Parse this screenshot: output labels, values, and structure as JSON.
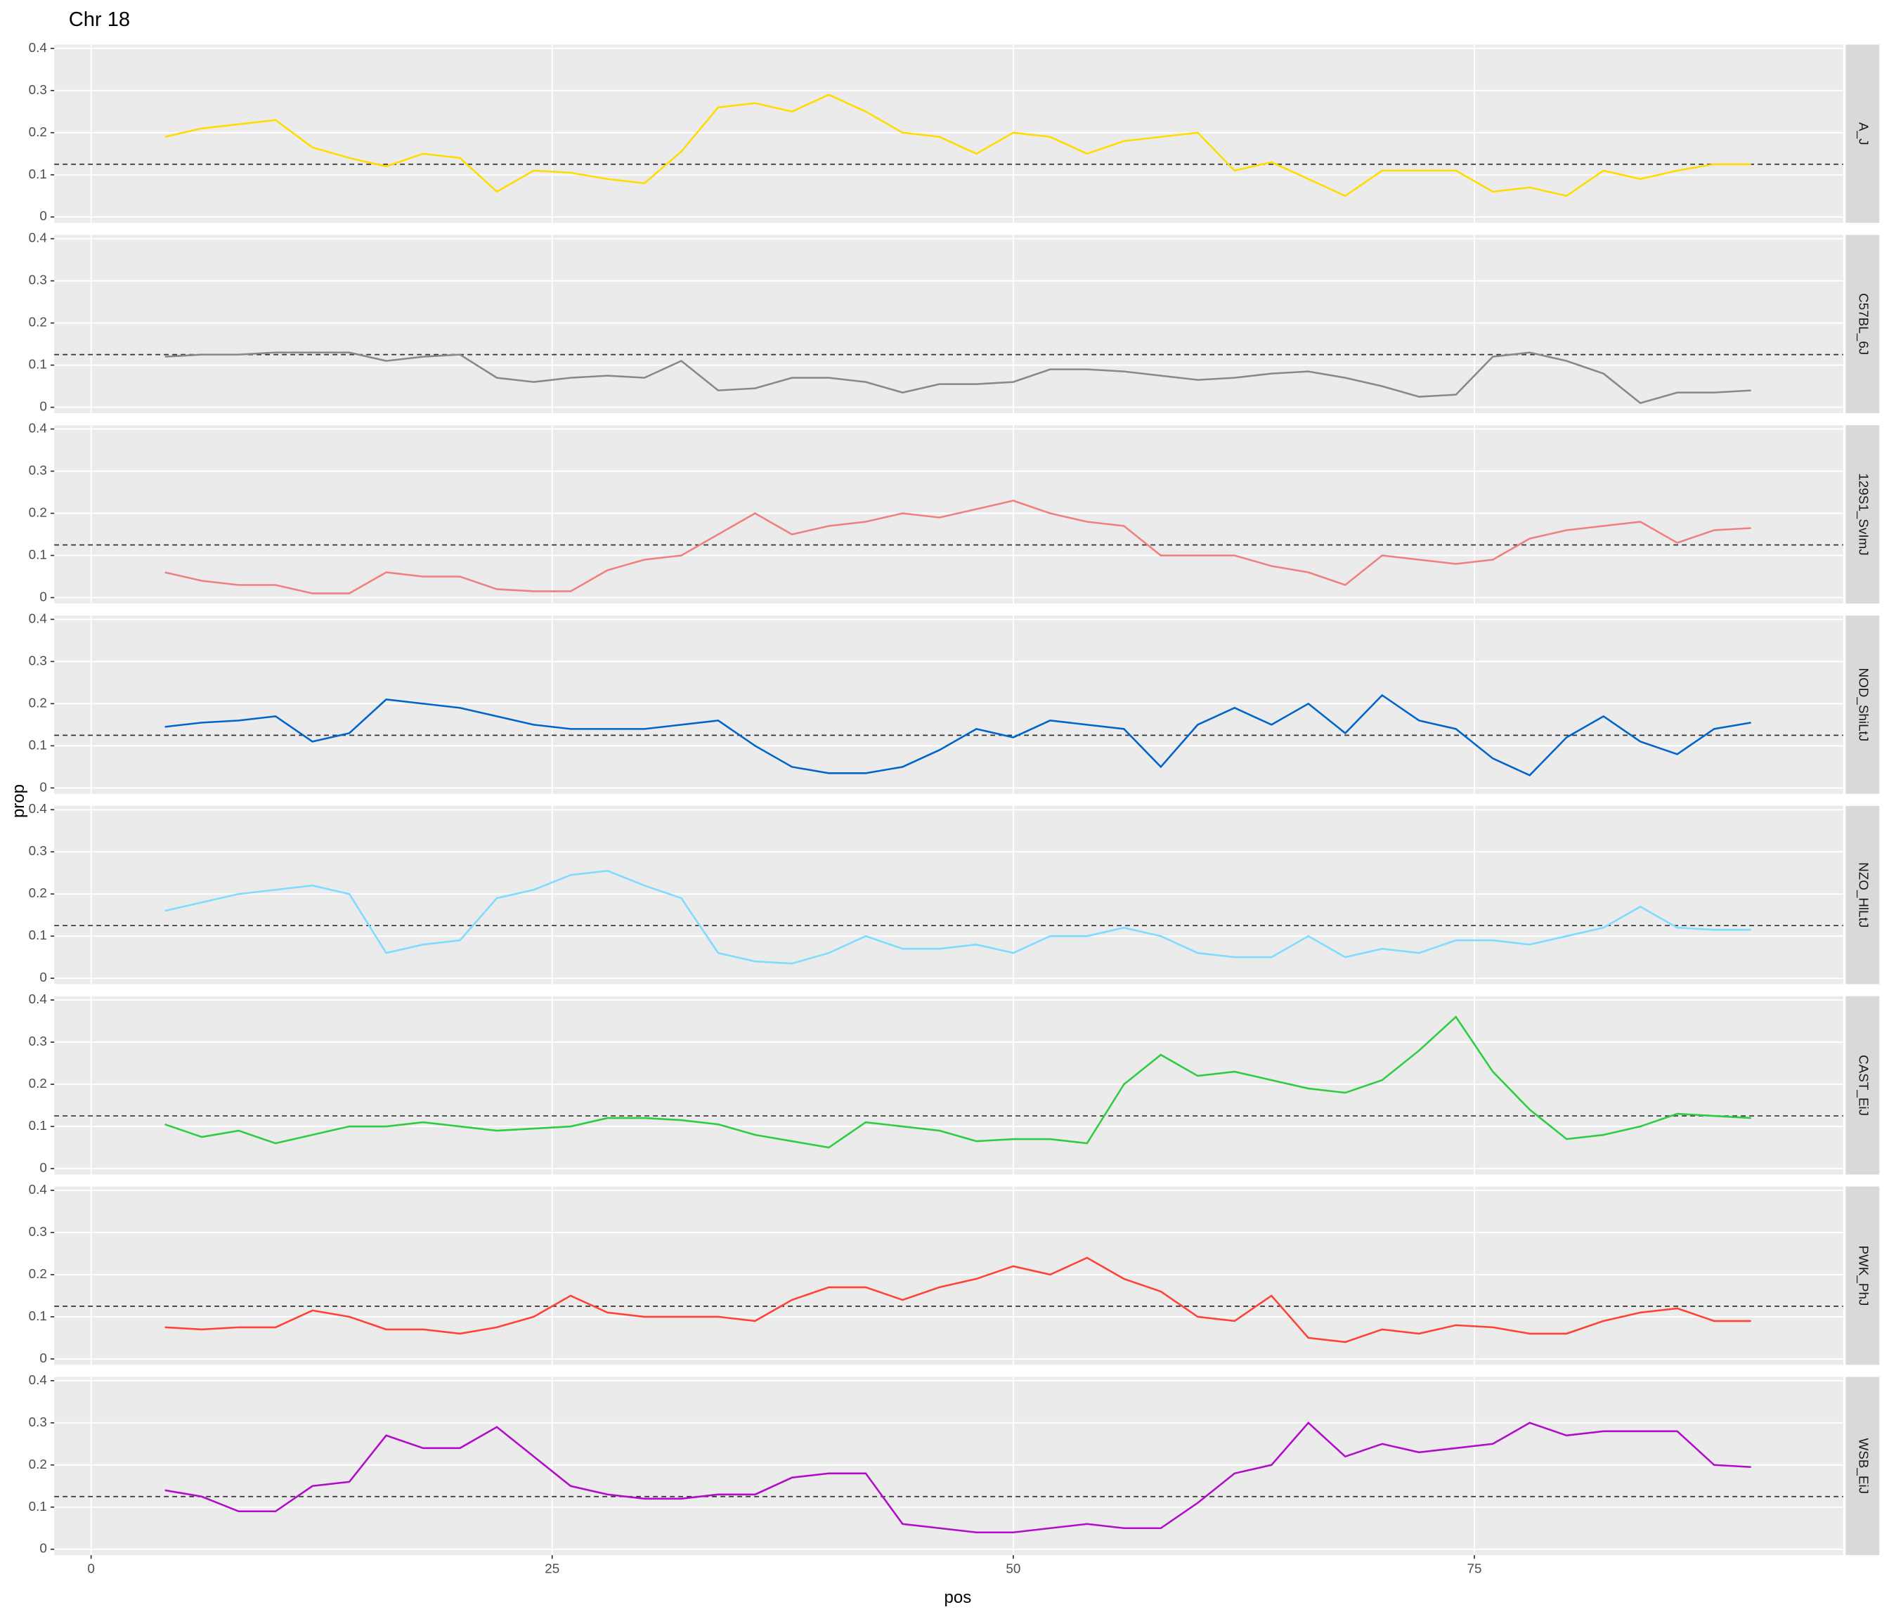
{
  "chart_data": {
    "type": "line",
    "title": "Chr 18",
    "x_label": "pos",
    "y_label": "prop",
    "x": [
      4,
      6,
      8,
      10,
      12,
      14,
      16,
      18,
      20,
      22,
      24,
      26,
      28,
      30,
      32,
      34,
      36,
      38,
      40,
      42,
      44,
      46,
      48,
      50,
      52,
      54,
      56,
      58,
      60,
      62,
      64,
      66,
      68,
      70,
      72,
      74,
      76,
      78,
      80,
      82,
      84,
      86,
      88,
      90
    ],
    "series": [
      {
        "name": "A_J",
        "color": "#FFDC00",
        "values": [
          0.19,
          0.21,
          0.22,
          0.23,
          0.165,
          0.14,
          0.12,
          0.15,
          0.14,
          0.06,
          0.11,
          0.105,
          0.09,
          0.08,
          0.155,
          0.26,
          0.27,
          0.25,
          0.29,
          0.25,
          0.2,
          0.19,
          0.15,
          0.2,
          0.19,
          0.15,
          0.18,
          0.19,
          0.2,
          0.11,
          0.13,
          0.09,
          0.05,
          0.11,
          0.11,
          0.11,
          0.06,
          0.07,
          0.05,
          0.11,
          0.09,
          0.11,
          0.125,
          0.125
        ]
      },
      {
        "name": "C57BL_6J",
        "color": "#888888",
        "values": [
          0.12,
          0.125,
          0.125,
          0.13,
          0.13,
          0.13,
          0.11,
          0.12,
          0.125,
          0.07,
          0.06,
          0.07,
          0.075,
          0.07,
          0.11,
          0.04,
          0.045,
          0.07,
          0.07,
          0.06,
          0.035,
          0.055,
          0.055,
          0.06,
          0.09,
          0.09,
          0.085,
          0.075,
          0.065,
          0.07,
          0.08,
          0.085,
          0.07,
          0.05,
          0.025,
          0.03,
          0.12,
          0.13,
          0.11,
          0.08,
          0.01,
          0.035,
          0.035,
          0.04
        ]
      },
      {
        "name": "129S1_SvImJ",
        "color": "#F08080",
        "values": [
          0.06,
          0.04,
          0.03,
          0.03,
          0.01,
          0.01,
          0.06,
          0.05,
          0.05,
          0.02,
          0.015,
          0.015,
          0.065,
          0.09,
          0.1,
          0.15,
          0.2,
          0.15,
          0.17,
          0.18,
          0.2,
          0.19,
          0.21,
          0.23,
          0.2,
          0.18,
          0.17,
          0.1,
          0.1,
          0.1,
          0.075,
          0.06,
          0.03,
          0.1,
          0.09,
          0.08,
          0.09,
          0.14,
          0.16,
          0.17,
          0.18,
          0.13,
          0.16,
          0.165
        ]
      },
      {
        "name": "NOD_ShiLtJ",
        "color": "#0064C9",
        "values": [
          0.145,
          0.155,
          0.16,
          0.17,
          0.11,
          0.13,
          0.21,
          0.2,
          0.19,
          0.17,
          0.15,
          0.14,
          0.14,
          0.14,
          0.15,
          0.16,
          0.1,
          0.05,
          0.035,
          0.035,
          0.05,
          0.09,
          0.14,
          0.12,
          0.16,
          0.15,
          0.14,
          0.05,
          0.15,
          0.19,
          0.15,
          0.2,
          0.13,
          0.22,
          0.16,
          0.14,
          0.07,
          0.03,
          0.12,
          0.17,
          0.11,
          0.08,
          0.14,
          0.155
        ]
      },
      {
        "name": "NZO_HlLtJ",
        "color": "#7FDBFF",
        "values": [
          0.16,
          0.18,
          0.2,
          0.21,
          0.22,
          0.2,
          0.06,
          0.08,
          0.09,
          0.19,
          0.21,
          0.245,
          0.255,
          0.22,
          0.19,
          0.06,
          0.04,
          0.035,
          0.06,
          0.1,
          0.07,
          0.07,
          0.08,
          0.06,
          0.1,
          0.1,
          0.12,
          0.1,
          0.06,
          0.05,
          0.05,
          0.1,
          0.05,
          0.07,
          0.06,
          0.09,
          0.09,
          0.08,
          0.1,
          0.12,
          0.17,
          0.12,
          0.115,
          0.115
        ]
      },
      {
        "name": "CAST_EiJ",
        "color": "#2ECC40",
        "values": [
          0.105,
          0.075,
          0.09,
          0.06,
          0.08,
          0.1,
          0.1,
          0.11,
          0.1,
          0.09,
          0.095,
          0.1,
          0.12,
          0.12,
          0.115,
          0.105,
          0.08,
          0.065,
          0.05,
          0.11,
          0.1,
          0.09,
          0.065,
          0.07,
          0.07,
          0.06,
          0.2,
          0.27,
          0.22,
          0.23,
          0.21,
          0.19,
          0.18,
          0.21,
          0.28,
          0.36,
          0.23,
          0.14,
          0.07,
          0.08,
          0.1,
          0.13,
          0.125,
          0.12
        ]
      },
      {
        "name": "PWK_PhJ",
        "color": "#FF4136",
        "values": [
          0.075,
          0.07,
          0.075,
          0.075,
          0.115,
          0.1,
          0.07,
          0.07,
          0.06,
          0.075,
          0.1,
          0.15,
          0.11,
          0.1,
          0.1,
          0.1,
          0.09,
          0.14,
          0.17,
          0.17,
          0.14,
          0.17,
          0.19,
          0.22,
          0.2,
          0.24,
          0.19,
          0.16,
          0.1,
          0.09,
          0.15,
          0.05,
          0.04,
          0.07,
          0.06,
          0.08,
          0.075,
          0.06,
          0.06,
          0.09,
          0.11,
          0.12,
          0.09,
          0.09
        ]
      },
      {
        "name": "WSB_EiJ",
        "color": "#B10DC9",
        "values": [
          0.14,
          0.125,
          0.09,
          0.09,
          0.15,
          0.16,
          0.27,
          0.24,
          0.24,
          0.29,
          0.22,
          0.15,
          0.13,
          0.12,
          0.12,
          0.13,
          0.13,
          0.17,
          0.18,
          0.18,
          0.06,
          0.05,
          0.04,
          0.04,
          0.05,
          0.06,
          0.05,
          0.05,
          0.11,
          0.18,
          0.2,
          0.3,
          0.22,
          0.25,
          0.23,
          0.24,
          0.25,
          0.3,
          0.27,
          0.28,
          0.28,
          0.28,
          0.2,
          0.195
        ]
      }
    ],
    "hline": 0.125,
    "xlim": [
      -2,
      95
    ],
    "xticks": [
      0,
      25,
      50,
      75
    ],
    "ylim": [
      -0.014,
      0.409
    ],
    "yticks": [
      0,
      0.1,
      0.2,
      0.3,
      0.4
    ],
    "grid": true
  }
}
